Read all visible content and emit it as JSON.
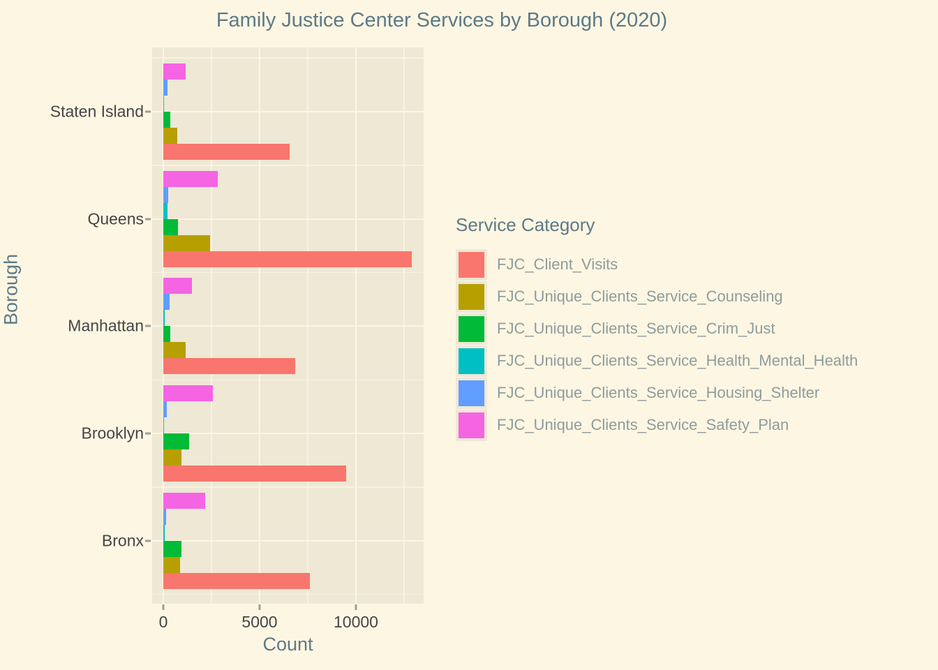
{
  "chart_data": {
    "type": "bar",
    "orientation": "horizontal",
    "title": "Family Justice Center Services by Borough (2020)",
    "xlabel": "Count",
    "ylabel": "Borough",
    "legend_title": "Service Category",
    "legend_position": "right",
    "grid": true,
    "categories": [
      "Staten Island",
      "Queens",
      "Manhattan",
      "Brooklyn",
      "Bronx"
    ],
    "series": [
      {
        "name": "FJC_Client_Visits",
        "color": "#F8766D",
        "values": [
          6550,
          12900,
          6850,
          9490,
          7600
        ]
      },
      {
        "name": "FJC_Unique_Clients_Service_Counseling",
        "color": "#B79F00",
        "values": [
          730,
          2430,
          1160,
          950,
          870
        ]
      },
      {
        "name": "FJC_Unique_Clients_Service_Crim_Just",
        "color": "#00BA38",
        "values": [
          350,
          760,
          360,
          1330,
          940
        ]
      },
      {
        "name": "FJC_Unique_Clients_Service_Health_Mental_Health",
        "color": "#00BFC4",
        "values": [
          50,
          220,
          60,
          50,
          60
        ]
      },
      {
        "name": "FJC_Unique_Clients_Service_Housing_Shelter",
        "color": "#619CFF",
        "values": [
          200,
          250,
          330,
          180,
          150
        ]
      },
      {
        "name": "FJC_Unique_Clients_Service_Safety_Plan",
        "color": "#F564E3",
        "values": [
          1160,
          2840,
          1490,
          2570,
          2170
        ]
      }
    ],
    "x_ticks": [
      {
        "value": 0,
        "label": "0"
      },
      {
        "value": 5000,
        "label": "5000"
      },
      {
        "value": 10000,
        "label": "10000"
      }
    ],
    "x_minor_ticks": [
      2500,
      7500,
      12500
    ],
    "xlim": [
      0,
      13500
    ]
  },
  "theme": {
    "background": "#FDF6E3",
    "panel_background": "#EEE8D5",
    "gridline_color": "#FDF6E3",
    "title_color": "#5D7A87",
    "tick_label_color": "#454545",
    "legend_text_color": "#8F9C9C",
    "tick_mark_color": "#93A1A1"
  }
}
